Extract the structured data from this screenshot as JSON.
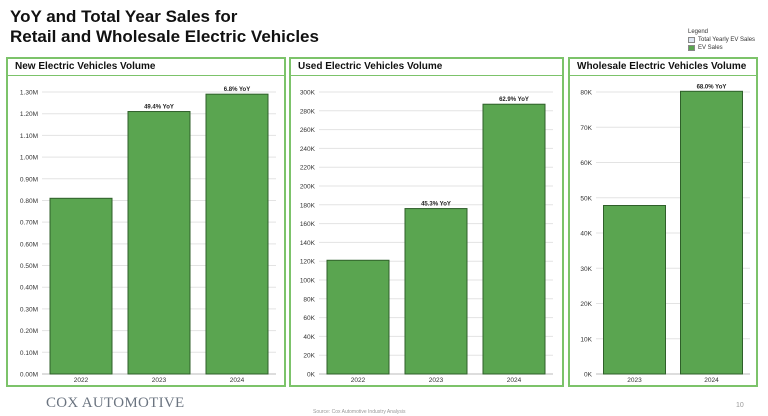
{
  "header": {
    "title_line1": "YoY and Total Year Sales for",
    "title_line2": "Retail and Wholesale Electric Vehicles"
  },
  "legend": {
    "title": "Legend",
    "items": [
      {
        "label": "Total Yearly EV Sales",
        "color": "#dfe7f3"
      },
      {
        "label": "EV Sales",
        "color": "#5aa550"
      }
    ]
  },
  "colors": {
    "bar": "#5aa550",
    "bar_stroke": "#2f5f2a",
    "panel_border": "#7cc36a",
    "grid": "#e3e3e3"
  },
  "footer": {
    "logo": "COX AUTOMOTIVE",
    "source": "Source: Cox Automotive Industry Analysis",
    "page_number": "10"
  },
  "chart_data": [
    {
      "type": "bar",
      "title": "New Electric Vehicles Volume",
      "categories": [
        "2022",
        "2023",
        "2024"
      ],
      "values": [
        0.81,
        1.21,
        1.29
      ],
      "annotations": [
        "",
        "49.4% YoY",
        "6.8% YoY"
      ],
      "ylim": [
        0,
        1.3
      ],
      "yticks": [
        0,
        0.1,
        0.2,
        0.3,
        0.4,
        0.5,
        0.6,
        0.7,
        0.8,
        0.9,
        1.0,
        1.1,
        1.2,
        1.3
      ],
      "ytick_labels": [
        "0.00M",
        "0.10M",
        "0.20M",
        "0.30M",
        "0.40M",
        "0.50M",
        "0.60M",
        "0.70M",
        "0.80M",
        "0.90M",
        "1.00M",
        "1.10M",
        "1.20M",
        "1.30M"
      ],
      "grid": true
    },
    {
      "type": "bar",
      "title": "Used Electric Vehicles Volume",
      "categories": [
        "2022",
        "2023",
        "2024"
      ],
      "values": [
        121000,
        176000,
        287000
      ],
      "annotations": [
        "",
        "45.3% YoY",
        "62.9% YoY"
      ],
      "ylim": [
        0,
        300000
      ],
      "yticks": [
        0,
        20000,
        40000,
        60000,
        80000,
        100000,
        120000,
        140000,
        160000,
        180000,
        200000,
        220000,
        240000,
        260000,
        280000,
        300000
      ],
      "ytick_labels": [
        "0K",
        "20K",
        "40K",
        "60K",
        "80K",
        "100K",
        "120K",
        "140K",
        "160K",
        "180K",
        "200K",
        "220K",
        "240K",
        "260K",
        "280K",
        "300K"
      ],
      "grid": true
    },
    {
      "type": "bar",
      "title": "Wholesale Electric Vehicles Volume",
      "categories": [
        "2023",
        "2024"
      ],
      "values": [
        47800,
        80200
      ],
      "annotations": [
        "",
        "68.0% YoY"
      ],
      "ylim": [
        0,
        80000
      ],
      "yticks": [
        0,
        10000,
        20000,
        30000,
        40000,
        50000,
        60000,
        70000,
        80000
      ],
      "ytick_labels": [
        "0K",
        "10K",
        "20K",
        "30K",
        "40K",
        "50K",
        "60K",
        "70K",
        "80K"
      ],
      "grid": true
    }
  ]
}
